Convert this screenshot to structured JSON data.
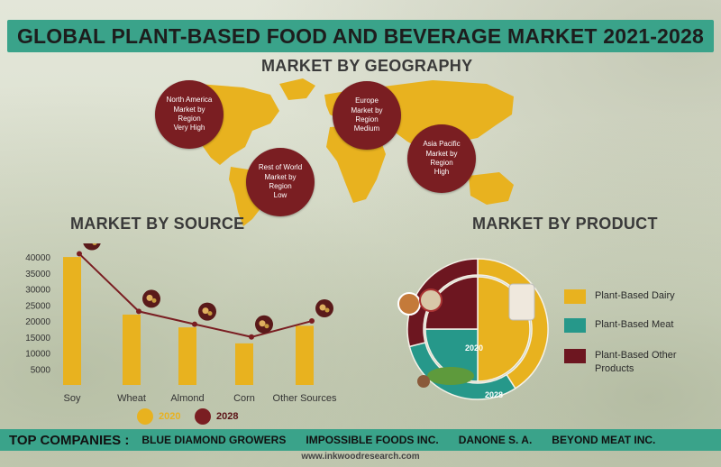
{
  "title": "GLOBAL PLANT-BASED FOOD AND BEVERAGE MARKET 2021-2028",
  "geography": {
    "heading": "MARKET BY GEOGRAPHY",
    "regions": [
      {
        "name": "North America",
        "line2": "Market by Region",
        "level": "Very High"
      },
      {
        "name": "Europe",
        "line2": "Market by Region",
        "level": "Medium"
      },
      {
        "name": "Asia Pacific",
        "line2": "Market by Region",
        "level": "High"
      },
      {
        "name": "Rest of World",
        "line2": "Market by Region",
        "level": "Low"
      }
    ]
  },
  "source": {
    "heading": "MARKET BY SOURCE",
    "legend": [
      {
        "label": "2020",
        "color": "#e8b21f"
      },
      {
        "label": "2028",
        "color": "#7a1e22"
      }
    ]
  },
  "product": {
    "heading": "MARKET BY PRODUCT",
    "legend": [
      {
        "label": "Plant-Based Dairy",
        "color": "#e8b21f"
      },
      {
        "label": "Plant-Based Meat",
        "color": "#26988a"
      },
      {
        "label": "Plant-Based Other Products",
        "color": "#6d1620"
      }
    ],
    "ring_labels": {
      "outer": "2028",
      "inner": "2020"
    }
  },
  "top_companies": {
    "label": "TOP COMPANIES :",
    "companies": [
      "BLUE DIAMOND GROWERS",
      "IMPOSSIBLE FOODS INC.",
      "DANONE S. A.",
      "BEYOND MEAT INC."
    ]
  },
  "footer": "www.inkwoodresearch.com",
  "colors": {
    "accent": "#3aa38a",
    "bar": "#e8b21f",
    "line": "#7a1e22",
    "map": "#e8b21f"
  },
  "chart_data": [
    {
      "type": "bar",
      "title": "MARKET BY SOURCE",
      "categories": [
        "Soy",
        "Wheat",
        "Almond",
        "Corn",
        "Other Sources"
      ],
      "series": [
        {
          "name": "2020",
          "type": "bar",
          "values": [
            40000,
            22000,
            18000,
            13000,
            18500
          ]
        },
        {
          "name": "2028",
          "type": "line",
          "values": [
            41000,
            23000,
            19000,
            15000,
            20000
          ]
        }
      ],
      "yticks": [
        5000,
        10000,
        15000,
        20000,
        25000,
        30000,
        35000,
        40000
      ],
      "ylim": [
        0,
        42000
      ]
    },
    {
      "type": "pie",
      "title": "MARKET BY PRODUCT",
      "rings": [
        {
          "name": "2028",
          "categories": [
            "Plant-Based Dairy",
            "Plant-Based Meat",
            "Plant-Based Other Products"
          ],
          "values": [
            41,
            30,
            29
          ]
        },
        {
          "name": "2020",
          "categories": [
            "Plant-Based Dairy",
            "Plant-Based Meat",
            "Plant-Based Other Products"
          ],
          "values": [
            50,
            25,
            25
          ]
        }
      ]
    }
  ]
}
